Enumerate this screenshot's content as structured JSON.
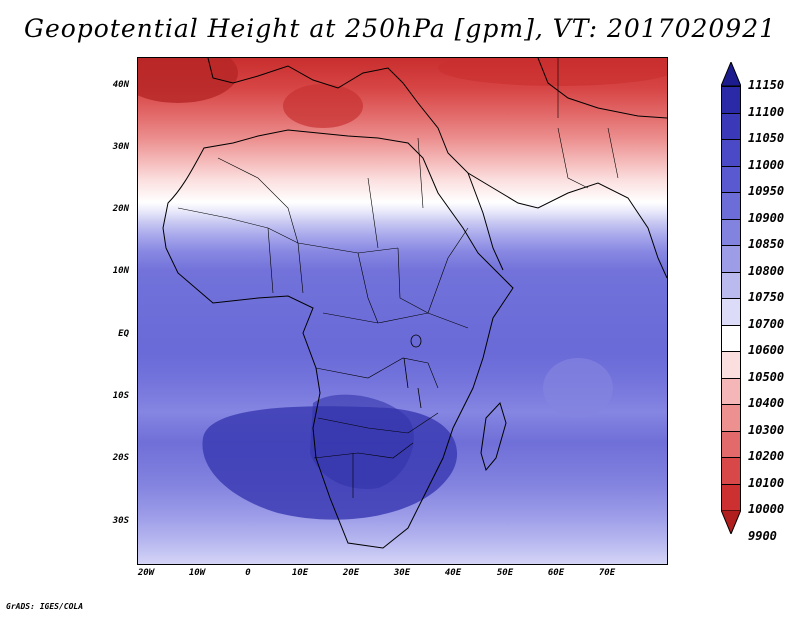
{
  "title": "Geopotential Height at 250hPa [gpm], VT: 2017020921",
  "footer": "GrADS: IGES/COLA",
  "map": {
    "lon_range": [
      -23,
      80
    ],
    "lat_range": [
      -37,
      45
    ],
    "lat_ticks": [
      "40N",
      "30N",
      "20N",
      "10N",
      "EQ",
      "10S",
      "20S",
      "30S"
    ],
    "lon_ticks": [
      "20W",
      "10W",
      "0",
      "10E",
      "20E",
      "30E",
      "40E",
      "50E",
      "60E",
      "70E"
    ]
  },
  "colorbar": {
    "labels": [
      "11150",
      "11100",
      "11050",
      "11000",
      "10950",
      "10900",
      "10850",
      "10800",
      "10750",
      "10700",
      "10600",
      "10500",
      "10400",
      "10300",
      "10200",
      "10100",
      "10000",
      "9900"
    ],
    "colors": [
      "#1c1c8e",
      "#2a2aa6",
      "#3a3ab8",
      "#4a4ac6",
      "#5a5ad0",
      "#6d6dd8",
      "#8282df",
      "#9c9ce7",
      "#babaef",
      "#dcdcf8",
      "#ffffff",
      "#fbdede",
      "#f4b6b6",
      "#ec9090",
      "#e26a6a",
      "#d94848",
      "#cc3030",
      "#b01e1e"
    ]
  }
}
